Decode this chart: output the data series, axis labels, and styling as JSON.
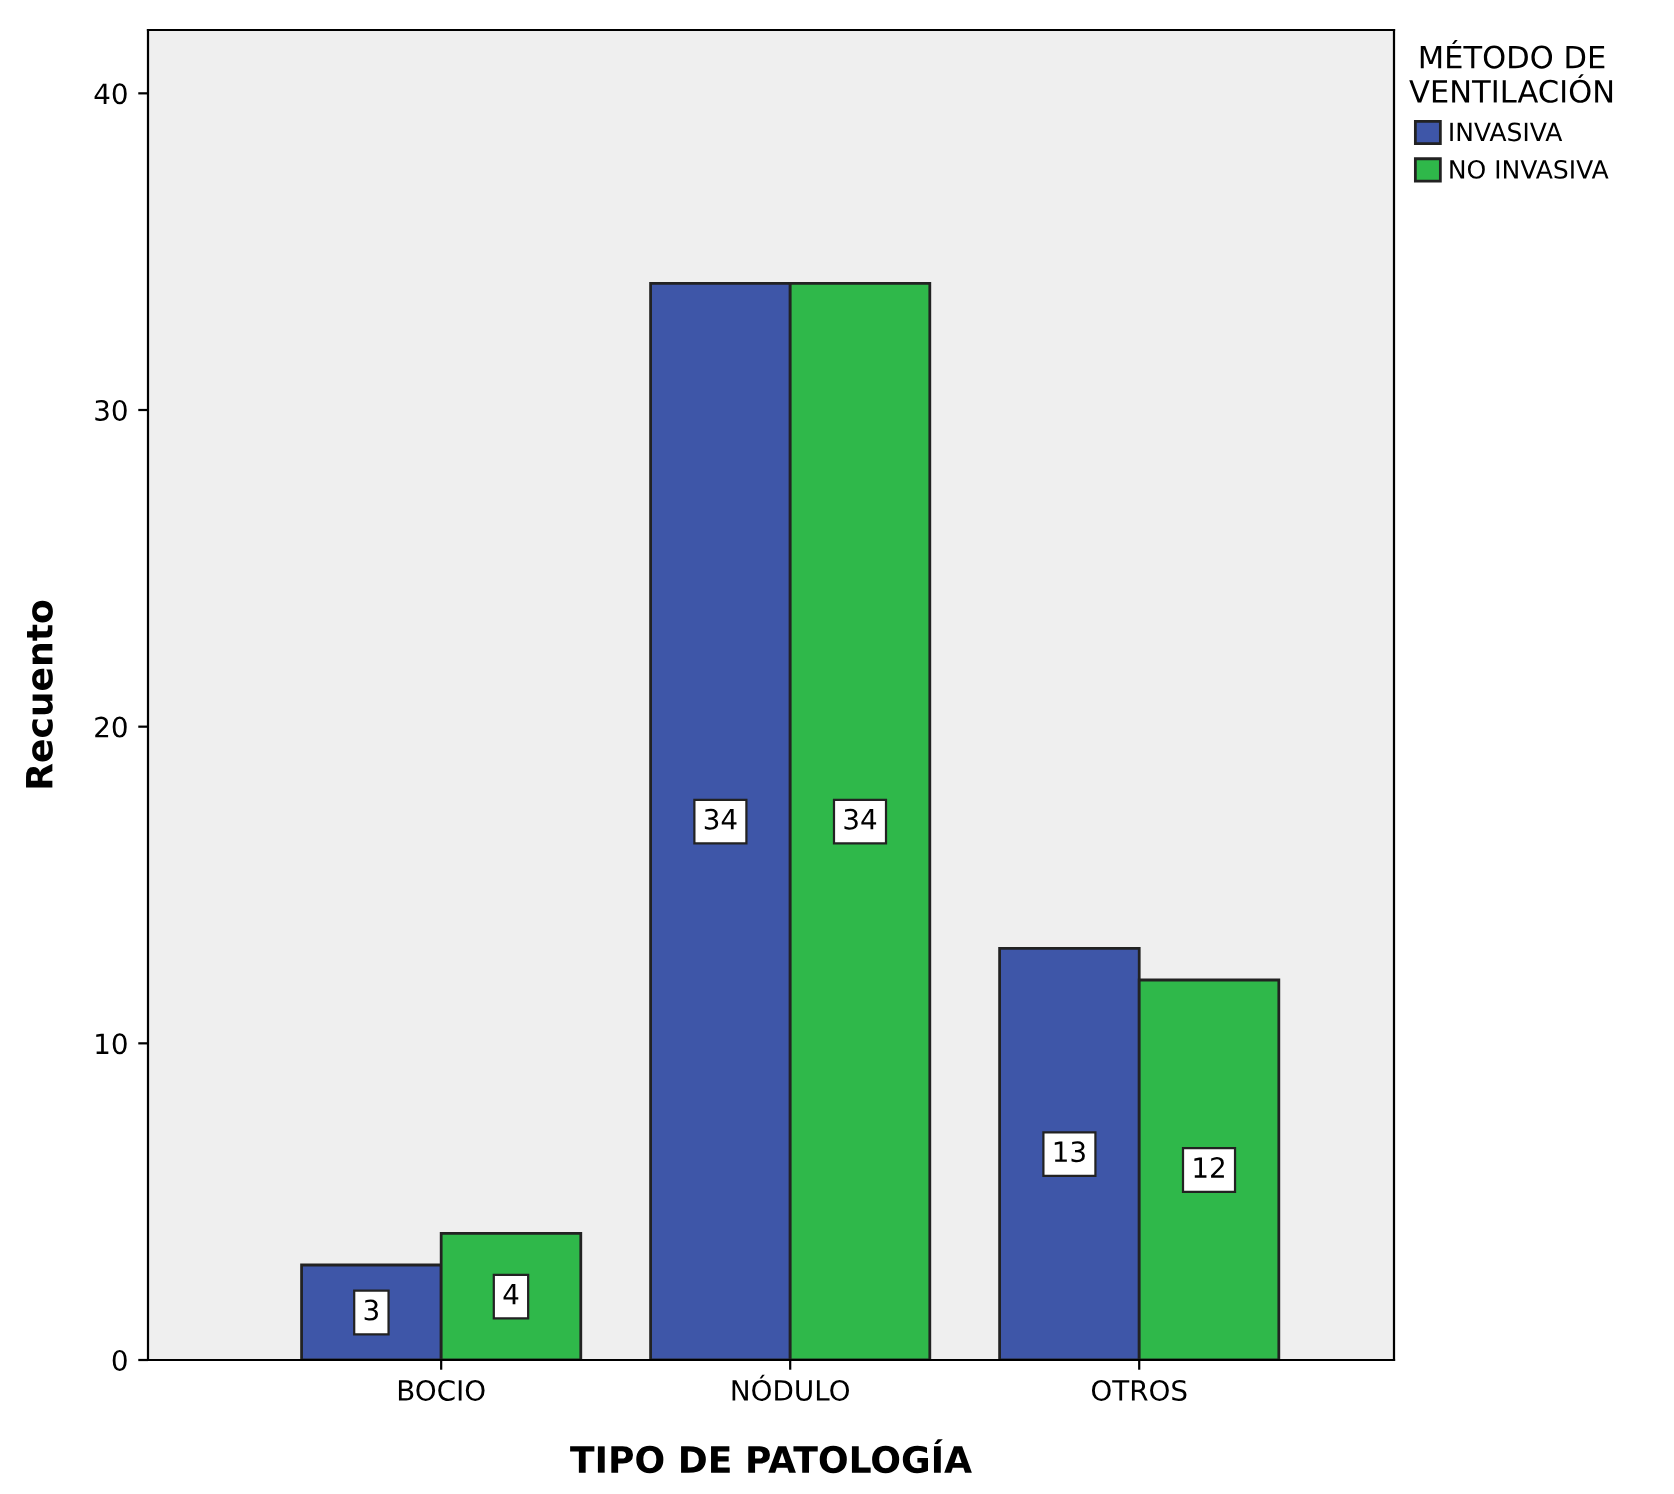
{
  "chart_data": {
    "type": "bar",
    "xlabel": "TIPO DE PATOLOGÍA",
    "ylabel": "Recuento",
    "legend_title": "MÉTODO DE\nVENTILACIÓN",
    "categories": [
      "BOCIO",
      "NÓDULO",
      "OTROS"
    ],
    "series": [
      {
        "name": "INVASIVA",
        "color": "#3e56a8",
        "values": [
          3,
          34,
          13
        ]
      },
      {
        "name": "NO INVASIVA",
        "color": "#2fb84a",
        "values": [
          4,
          34,
          12
        ]
      }
    ],
    "ylim": [
      0,
      42
    ],
    "yticks": [
      0,
      10,
      20,
      30,
      40
    ],
    "grid": false,
    "legend": "top right",
    "data_labels": true
  }
}
